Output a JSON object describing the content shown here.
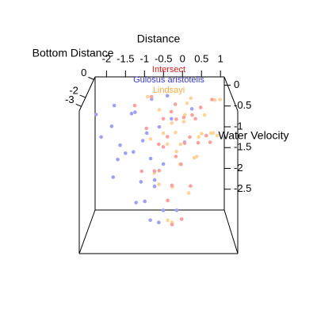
{
  "chart_data": {
    "type": "scatter3d",
    "xlabel": "Distance",
    "ylabel": "Bottom Distance",
    "zlabel": "Water Velocity",
    "xlim": [
      -2.3,
      1.1
    ],
    "ylim": [
      -3.5,
      0.3
    ],
    "zlim": [
      -3,
      0.2
    ],
    "xticks": [
      -2,
      -1.5,
      -1,
      -0.5,
      0,
      0.5,
      1
    ],
    "yticks": [
      -3,
      -2,
      0
    ],
    "zticks": [
      0,
      -0.5,
      -1,
      -1.5,
      -2,
      -2.5
    ],
    "series": [
      {
        "name": "Gulosus aristotelis",
        "color": "#a0a0f4",
        "label_color": "#3a3acc",
        "x": [
          -2.1,
          -1.9,
          -1.7,
          -1.5,
          -1.6,
          -1.3,
          -1.2,
          -1.0,
          -0.9,
          -0.8,
          -1.4,
          -1.1,
          -0.7,
          -0.6,
          -0.5,
          -0.9,
          -1.2,
          -0.8,
          -0.6,
          -0.4,
          -1.0,
          -0.7,
          -0.5,
          -0.3,
          -0.2,
          0.0,
          0.2,
          -1.8,
          -1.5,
          -0.8
        ],
        "y": [
          -1.5,
          -2.5,
          -1,
          -2,
          -3,
          -0.5,
          -1.8,
          -2.6,
          -1.2,
          -0.3,
          -1.5,
          -2.9,
          -2,
          -1,
          -2.4,
          -3.2,
          -0.8,
          -1.6,
          -2.7,
          -0.4,
          -1.1,
          -2.2,
          -1.3,
          -0.6,
          -2.8,
          -1.7,
          -0.9,
          -0.5,
          -3,
          -2.1
        ],
        "z": [
          -0.3,
          -0.6,
          -0.2,
          -0.9,
          -1.4,
          -0.5,
          -1.1,
          -1.6,
          -0.8,
          -0.2,
          -1.2,
          -2.0,
          -1.7,
          -0.7,
          -2.3,
          -1.9,
          -0.4,
          -1.3,
          -2.5,
          -0.1,
          -1.0,
          -1.8,
          -1.5,
          -0.6,
          -2.2,
          -0.9,
          -0.3,
          -0.8,
          -1.0,
          -2.6
        ]
      },
      {
        "name": "Lindsayi",
        "color": "#ffd49a",
        "label_color": "#ffaa44",
        "x": [
          -0.9,
          -0.6,
          -0.3,
          0.0,
          0.3,
          0.6,
          0.9,
          -0.5,
          -0.2,
          0.1,
          0.4,
          0.7,
          -0.4,
          -0.1,
          0.2,
          0.5,
          0.8,
          -0.7,
          -0.3,
          0.0,
          0.3,
          -0.6,
          -0.2,
          0.1,
          -0.4,
          -0.1,
          -0.3,
          0.2,
          -0.8,
          0.6
        ],
        "y": [
          -0.5,
          -1,
          -1.5,
          -2,
          -2.5,
          -3,
          -0.8,
          -1.2,
          -2.2,
          -0.3,
          -1.7,
          -2.8,
          -0.6,
          -1.9,
          -2.4,
          -1.1,
          -0.4,
          -2.6,
          -3.1,
          -0.9,
          -1.4,
          -2,
          -0.7,
          -1.6,
          -2.9,
          -1.3,
          -2.3,
          -0.2,
          -1.8,
          -2.1
        ],
        "z": [
          -0.1,
          -0.3,
          -0.5,
          -0.2,
          -0.6,
          -0.4,
          -0.1,
          -0.8,
          -1.0,
          -0.3,
          -0.7,
          -0.5,
          -1.2,
          -0.9,
          -1.1,
          -0.4,
          -0.2,
          -1.4,
          -1.6,
          -0.6,
          -1.3,
          -1.8,
          -0.9,
          -2.1,
          -2.4,
          -1.5,
          -2.6,
          -0.2,
          -0.8,
          -0.6
        ]
      },
      {
        "name": "Intersect",
        "color": "#ffa0a0",
        "label_color": "#dd2222",
        "x": [
          -1.2,
          -0.8,
          -0.5,
          -0.2,
          0.1,
          0.4,
          0.7,
          -0.6,
          -0.3,
          0.0,
          0.3,
          -0.9,
          -0.4,
          -0.1,
          0.2,
          0.5,
          -0.7,
          -0.2,
          0.1,
          -0.5,
          -0.3,
          0.0,
          -0.4,
          -0.2,
          -0.1,
          0.3,
          -1.0,
          0.6,
          -0.6,
          -0.3
        ],
        "y": [
          -1,
          -0.5,
          -1.5,
          -2,
          -2.5,
          -1.2,
          -0.8,
          -2.8,
          -0.3,
          -1.8,
          -2.2,
          -1.6,
          -0.7,
          -2.6,
          -1.1,
          -1.9,
          -2.4,
          -0.4,
          -3,
          -1.3,
          -2.1,
          -0.9,
          -2.7,
          -1.4,
          -3.2,
          -0.6,
          -2,
          -1.7,
          -1.1,
          -2.5
        ],
        "z": [
          -0.2,
          -0.1,
          -0.4,
          -0.3,
          -0.6,
          -0.2,
          -0.1,
          -0.7,
          -0.5,
          -0.9,
          -0.8,
          -0.6,
          -1.0,
          -1.2,
          -0.4,
          -0.7,
          -1.4,
          -0.3,
          -1.6,
          -1.1,
          -1.8,
          -0.5,
          -2.0,
          -1.3,
          -2.3,
          -0.6,
          -1.5,
          -0.9,
          -1.7,
          -2.6
        ]
      }
    ]
  }
}
